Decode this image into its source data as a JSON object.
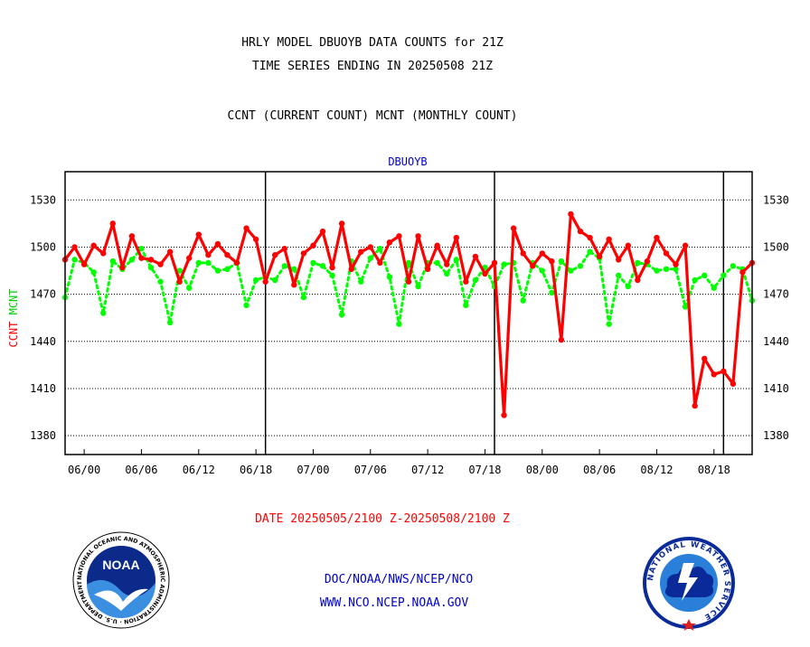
{
  "header": {
    "title_line1": "HRLY MODEL DBUOYB DATA COUNTS for 21Z",
    "title_line2": "TIME SERIES ENDING IN 20250508 21Z",
    "subtitle": "CCNT (CURRENT COUNT) MCNT (MONTHLY COUNT)"
  },
  "footer": {
    "date_range": "DATE 20250505/2100 Z-20250508/2100 Z",
    "link1": "DOC/NOAA/NWS/NCEP/NCO",
    "link2": "WWW.NCO.NCEP.NOAA.GOV",
    "noaa_logo_text": "NOAA",
    "noaa_ring_text": "NATIONAL OCEANIC AND ATMOSPHERIC ADMINISTRATION · U.S. DEPARTMENT OF COMMERCE",
    "nws_ring_text": "NATIONAL WEATHER SERVICE"
  },
  "colors": {
    "ccnt": "#ff0000",
    "mcnt": "#00ff00",
    "plot_title": "#0000cc",
    "text": "#000000",
    "footer_date": "#ff0000",
    "footer_links": "#0000cc"
  },
  "chart_data": {
    "type": "line",
    "title": "DBUOYB",
    "ylabel_ccnt": "CCNT",
    "ylabel_mcnt": "MCNT",
    "ylim": [
      1368,
      1548
    ],
    "xlim": [
      0,
      72
    ],
    "yticks": [
      1380,
      1410,
      1440,
      1470,
      1500,
      1530
    ],
    "x_ticks": [
      {
        "x": 2,
        "label": "06/00"
      },
      {
        "x": 8,
        "label": "06/06"
      },
      {
        "x": 14,
        "label": "06/12"
      },
      {
        "x": 20,
        "label": "06/18"
      },
      {
        "x": 26,
        "label": "07/00"
      },
      {
        "x": 32,
        "label": "07/06"
      },
      {
        "x": 38,
        "label": "07/12"
      },
      {
        "x": 44,
        "label": "07/18"
      },
      {
        "x": 50,
        "label": "08/00"
      },
      {
        "x": 56,
        "label": "08/06"
      },
      {
        "x": 62,
        "label": "08/12"
      },
      {
        "x": 68,
        "label": "08/18"
      }
    ],
    "day_boundaries": [
      21,
      45,
      69
    ],
    "grid": true,
    "series": [
      {
        "name": "CCNT",
        "style": "solid",
        "values": [
          1492,
          1500,
          1489,
          1501,
          1496,
          1515,
          1487,
          1507,
          1493,
          1492,
          1489,
          1497,
          1478,
          1493,
          1508,
          1495,
          1502,
          1495,
          1490,
          1512,
          1505,
          1478,
          1495,
          1499,
          1476,
          1496,
          1501,
          1510,
          1487,
          1515,
          1486,
          1497,
          1500,
          1490,
          1503,
          1507,
          1478,
          1507,
          1486,
          1501,
          1489,
          1506,
          1478,
          1494,
          1483,
          1490,
          1393,
          1512,
          1496,
          1488,
          1496,
          1491,
          1441,
          1521,
          1510,
          1506,
          1494,
          1505,
          1492,
          1501,
          1479,
          1491,
          1506,
          1496,
          1489,
          1501,
          1399,
          1429,
          1419,
          1421,
          1413,
          1484,
          1490
        ]
      },
      {
        "name": "MCNT",
        "style": "dotted",
        "values": [
          1468,
          1492,
          1490,
          1484,
          1458,
          1491,
          1486,
          1492,
          1499,
          1487,
          1478,
          1452,
          1485,
          1474,
          1490,
          1490,
          1485,
          1486,
          1490,
          1463,
          1479,
          1481,
          1479,
          1488,
          1486,
          1468,
          1490,
          1488,
          1482,
          1457,
          1491,
          1478,
          1493,
          1499,
          1481,
          1451,
          1490,
          1475,
          1490,
          1490,
          1483,
          1492,
          1463,
          1479,
          1487,
          1475,
          1489,
          1490,
          1466,
          1490,
          1485,
          1471,
          1491,
          1485,
          1488,
          1497,
          1493,
          1451,
          1482,
          1475,
          1490,
          1489,
          1485,
          1486,
          1486,
          1462,
          1479,
          1482,
          1474,
          1482,
          1488,
          1486,
          1466
        ]
      }
    ]
  }
}
